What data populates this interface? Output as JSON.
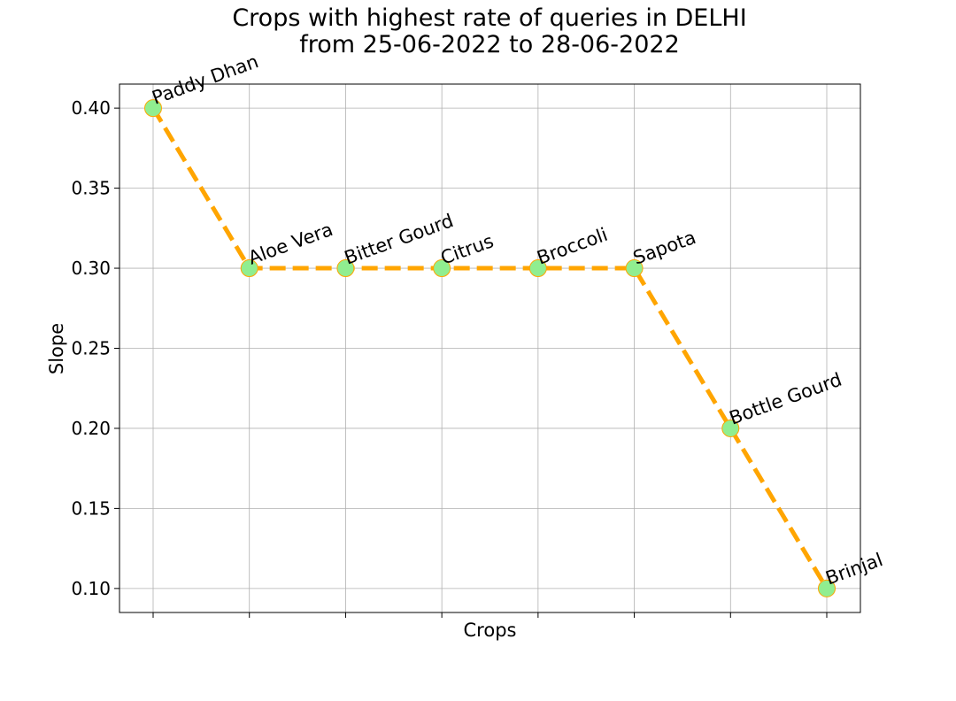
{
  "chart_data": {
    "type": "line",
    "title": [
      "Crops with highest rate of queries in DELHI",
      "from 25-06-2022 to 28-06-2022"
    ],
    "xlabel": "Crops",
    "ylabel": "Slope",
    "categories": [
      "Paddy Dhan",
      "Aloe Vera",
      "Bitter Gourd",
      "Citrus",
      "Broccoli",
      "Sapota",
      "Bottle Gourd",
      "Brinjal"
    ],
    "values": [
      0.4,
      0.3,
      0.3,
      0.3,
      0.3,
      0.3,
      0.2,
      0.1
    ],
    "ylim": [
      0.085,
      0.415
    ],
    "yticks": [
      "0.10",
      "0.15",
      "0.20",
      "0.25",
      "0.30",
      "0.35",
      "0.40"
    ],
    "grid": true,
    "line_style": "dashed",
    "colors": {
      "line": "#FFA500",
      "marker_fill": "#90EE90",
      "marker_edge": "#FFA500",
      "grid": "#b0b0b0"
    }
  }
}
